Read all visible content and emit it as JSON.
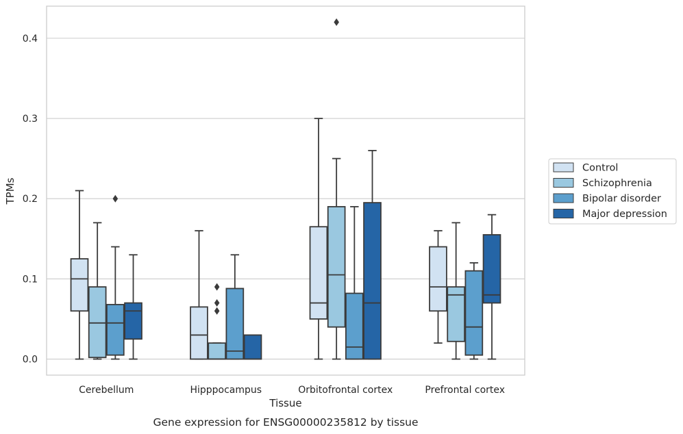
{
  "chart_data": {
    "type": "box",
    "title": "",
    "caption": "Gene expression for ENSG00000235812 by tissue",
    "xlabel": "Tissue",
    "ylabel": "TPMs",
    "ylim": [
      -0.02,
      0.44
    ],
    "yticks": [
      0.0,
      0.1,
      0.2,
      0.3,
      0.4
    ],
    "ytick_labels": [
      "0.0",
      "0.1",
      "0.2",
      "0.3",
      "0.4"
    ],
    "grid": "horizontal",
    "legend_position": "right, outside plot",
    "categories": [
      "Cerebellum",
      "Hipppocampus",
      "Orbitofrontal cortex",
      "Prefrontal cortex"
    ],
    "series": [
      {
        "name": "Control",
        "color": "#d1e2f2",
        "boxes": [
          {
            "whislo": 0.0,
            "q1": 0.06,
            "med": 0.1,
            "q3": 0.125,
            "whishi": 0.21,
            "fliers": []
          },
          {
            "whislo": 0.0,
            "q1": 0.0,
            "med": 0.03,
            "q3": 0.065,
            "whishi": 0.16,
            "fliers": []
          },
          {
            "whislo": 0.0,
            "q1": 0.05,
            "med": 0.07,
            "q3": 0.165,
            "whishi": 0.3,
            "fliers": []
          },
          {
            "whislo": 0.02,
            "q1": 0.06,
            "med": 0.09,
            "q3": 0.14,
            "whishi": 0.16,
            "fliers": []
          }
        ]
      },
      {
        "name": "Schizophrenia",
        "color": "#9ac8e0",
        "boxes": [
          {
            "whislo": 0.0,
            "q1": 0.002,
            "med": 0.045,
            "q3": 0.09,
            "whishi": 0.17,
            "fliers": []
          },
          {
            "whislo": 0.0,
            "q1": 0.0,
            "med": 0.0,
            "q3": 0.02,
            "whishi": 0.02,
            "fliers": [
              0.06,
              0.07,
              0.09
            ]
          },
          {
            "whislo": 0.0,
            "q1": 0.04,
            "med": 0.105,
            "q3": 0.19,
            "whishi": 0.25,
            "fliers": [
              0.42
            ]
          },
          {
            "whislo": 0.0,
            "q1": 0.022,
            "med": 0.08,
            "q3": 0.09,
            "whishi": 0.17,
            "fliers": []
          }
        ]
      },
      {
        "name": "Bipolar disorder",
        "color": "#5c9fcd",
        "boxes": [
          {
            "whislo": 0.0,
            "q1": 0.005,
            "med": 0.045,
            "q3": 0.068,
            "whishi": 0.14,
            "fliers": [
              0.2
            ]
          },
          {
            "whislo": 0.0,
            "q1": 0.0,
            "med": 0.01,
            "q3": 0.088,
            "whishi": 0.13,
            "fliers": []
          },
          {
            "whislo": 0.0,
            "q1": 0.0,
            "med": 0.015,
            "q3": 0.082,
            "whishi": 0.19,
            "fliers": []
          },
          {
            "whislo": 0.0,
            "q1": 0.005,
            "med": 0.04,
            "q3": 0.11,
            "whishi": 0.12,
            "fliers": []
          }
        ]
      },
      {
        "name": "Major depression",
        "color": "#2565a6",
        "boxes": [
          {
            "whislo": 0.0,
            "q1": 0.025,
            "med": 0.06,
            "q3": 0.07,
            "whishi": 0.13,
            "fliers": []
          },
          {
            "whislo": 0.0,
            "q1": 0.0,
            "med": 0.0,
            "q3": 0.03,
            "whishi": 0.03,
            "fliers": []
          },
          {
            "whislo": 0.0,
            "q1": 0.0,
            "med": 0.07,
            "q3": 0.195,
            "whishi": 0.26,
            "fliers": []
          },
          {
            "whislo": 0.0,
            "q1": 0.07,
            "med": 0.08,
            "q3": 0.155,
            "whishi": 0.18,
            "fliers": []
          }
        ]
      }
    ]
  }
}
